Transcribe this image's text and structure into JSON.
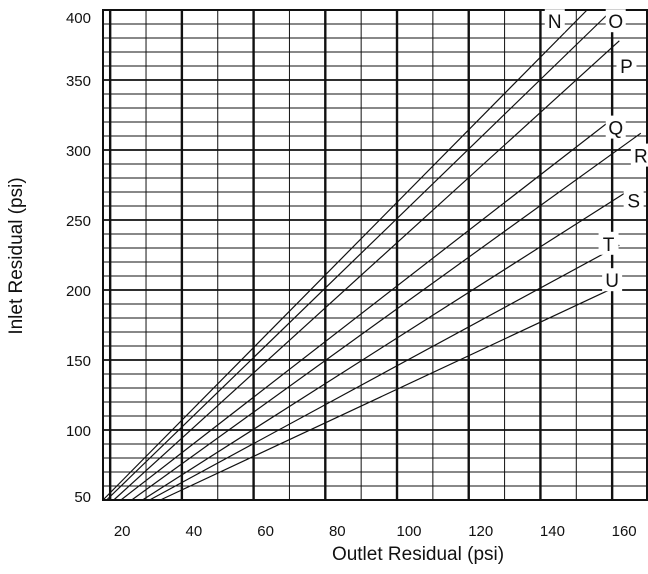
{
  "chart_data": {
    "type": "line",
    "xlabel": "Outlet Residual (psi)",
    "ylabel": "Inlet Residual (psi)",
    "xlim": [
      18,
      170
    ],
    "ylim": [
      50,
      400
    ],
    "x_ticks": [
      20,
      40,
      60,
      80,
      100,
      120,
      140,
      160
    ],
    "y_ticks": [
      50,
      100,
      150,
      200,
      250,
      300,
      350,
      400
    ],
    "x_tick_labels": [
      "20",
      "40",
      "60",
      "80",
      "100",
      "120",
      "140",
      "160"
    ],
    "y_tick_labels": [
      "50",
      "100",
      "150",
      "200",
      "250",
      "300",
      "350",
      "400"
    ],
    "grid": true,
    "legend": "none",
    "line_color": "#111111",
    "series": [
      {
        "name": "N",
        "points": [
          [
            18,
            50
          ],
          [
            153,
            400
          ]
        ]
      },
      {
        "name": "O",
        "points": [
          [
            19,
            50
          ],
          [
            160,
            400
          ]
        ]
      },
      {
        "name": "P",
        "points": [
          [
            21,
            50
          ],
          [
            162,
            378
          ]
        ]
      },
      {
        "name": "Q",
        "points": [
          [
            23,
            50
          ],
          [
            160,
            322
          ]
        ]
      },
      {
        "name": "R",
        "points": [
          [
            26,
            50
          ],
          [
            168,
            312
          ]
        ]
      },
      {
        "name": "S",
        "points": [
          [
            29,
            50
          ],
          [
            164,
            270
          ]
        ]
      },
      {
        "name": "T",
        "points": [
          [
            31,
            50
          ],
          [
            162,
            232
          ]
        ]
      },
      {
        "name": "U",
        "points": [
          [
            34,
            50
          ],
          [
            160,
            201
          ]
        ]
      }
    ],
    "series_label_positions": {
      "N": [
        144,
        392
      ],
      "O": [
        161,
        392
      ],
      "P": [
        164,
        360
      ],
      "Q": [
        161,
        316
      ],
      "R": [
        168,
        296
      ],
      "S": [
        166,
        264
      ],
      "T": [
        159,
        233
      ],
      "U": [
        160,
        207
      ]
    }
  }
}
